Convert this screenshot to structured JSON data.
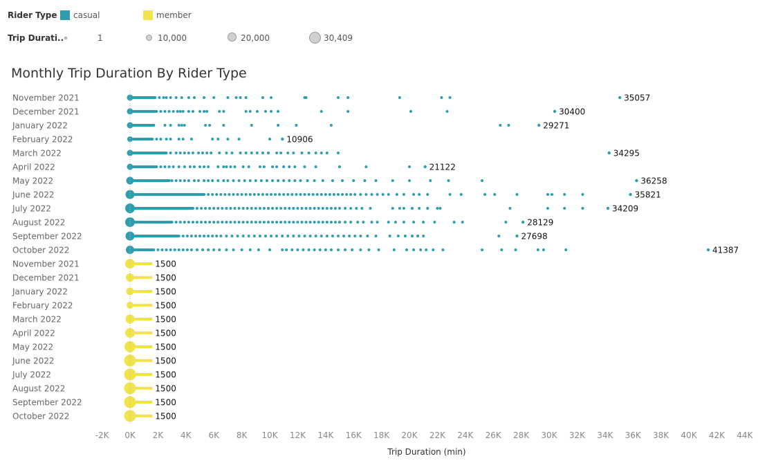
{
  "legend": {
    "color_title": "Rider Type",
    "items": [
      {
        "label": "casual",
        "color": "#2e9eae"
      },
      {
        "label": "member",
        "color": "#f1e34a"
      }
    ],
    "size_title": "Trip Durati..",
    "sizes": [
      {
        "label": "1",
        "value": 1
      },
      {
        "label": "10,000",
        "value": 10000
      },
      {
        "label": "20,000",
        "value": 20000
      },
      {
        "label": "30,409",
        "value": 30409
      }
    ]
  },
  "chart_data": {
    "type": "scatter",
    "title": "Monthly Trip Duration By Rider Type",
    "xlabel": "Trip Duration (min)",
    "xlim": [
      -2000,
      44000
    ],
    "xticks": [
      -2000,
      0,
      2000,
      4000,
      6000,
      8000,
      10000,
      12000,
      14000,
      16000,
      18000,
      20000,
      22000,
      24000,
      26000,
      28000,
      30000,
      32000,
      34000,
      36000,
      38000,
      40000,
      42000,
      44000
    ],
    "xtick_labels": [
      "-2K",
      "0K",
      "2K",
      "4K",
      "6K",
      "8K",
      "10K",
      "12K",
      "14K",
      "16K",
      "18K",
      "20K",
      "22K",
      "24K",
      "26K",
      "28K",
      "30K",
      "32K",
      "34K",
      "36K",
      "38K",
      "40K",
      "42K",
      "44K"
    ],
    "series": [
      {
        "name": "casual",
        "color": "#2e9eae",
        "rows": [
          {
            "label": "November 2021",
            "max": 35057,
            "dense_to": 1800,
            "points": [
              2100,
              2400,
              2600,
              2900,
              3300,
              3700,
              4200,
              4600,
              5300,
              6000,
              7000,
              7600,
              7900,
              8300,
              9500,
              10100,
              12500,
              12600,
              14900,
              15600,
              19300,
              22300,
              22900
            ]
          },
          {
            "label": "December 2021",
            "max": 30400,
            "dense_to": 1800,
            "points": [
              1900,
              2200,
              2500,
              2800,
              3100,
              3400,
              3600,
              3800,
              4200,
              4500,
              5000,
              5300,
              5500,
              6400,
              6700,
              8300,
              8600,
              9100,
              9700,
              10100,
              10600,
              13700,
              15600,
              20100,
              22700
            ]
          },
          {
            "label": "January 2022",
            "max": 29271,
            "dense_to": 1700,
            "points": [
              2500,
              2900,
              3500,
              3700,
              3900,
              5400,
              5700,
              6700,
              8700,
              10600,
              11900,
              14400,
              26500,
              27100
            ]
          },
          {
            "label": "February 2022",
            "max": 10906,
            "dense_to": 1600,
            "points": [
              1900,
              2200,
              2600,
              2900,
              3500,
              3800,
              4400,
              5900,
              6300,
              7000,
              7800,
              10000
            ]
          },
          {
            "label": "March 2022",
            "max": 34295,
            "dense_to": 2600,
            "points": [
              2900,
              3300,
              3600,
              3900,
              4200,
              4500,
              4900,
              5200,
              5500,
              5800,
              6400,
              6900,
              7300,
              7900,
              8300,
              8700,
              9100,
              9500,
              9900,
              10500,
              10800,
              11300,
              11700,
              12300,
              12800,
              13300,
              13700,
              14100,
              14900
            ]
          },
          {
            "label": "April 2022",
            "max": 21122,
            "dense_to": 1900,
            "points": [
              2200,
              2500,
              2800,
              3100,
              3500,
              3900,
              4300,
              4600,
              5000,
              5300,
              5600,
              6300,
              6700,
              6900,
              7200,
              7500,
              8100,
              8500,
              9300,
              9600,
              10200,
              10500,
              11000,
              11400,
              11800,
              12500,
              13300,
              15000,
              16900,
              20000
            ]
          },
          {
            "label": "May 2022",
            "max": 36258,
            "dense_to": 2800,
            "points": [
              3000,
              3300,
              3600,
              3900,
              4200,
              4600,
              4900,
              5300,
              5600,
              5900,
              6300,
              6700,
              7000,
              7400,
              7800,
              8200,
              8600,
              9000,
              9400,
              9800,
              10200,
              10600,
              11000,
              11400,
              11800,
              12200,
              12700,
              13200,
              13800,
              14500,
              15200,
              16000,
              16800,
              17600,
              18800,
              20000,
              21500,
              22800,
              25200
            ]
          },
          {
            "label": "June 2022",
            "max": 35821,
            "dense_to": 5300,
            "points": [
              5600,
              5900,
              6200,
              6500,
              6800,
              7100,
              7400,
              7700,
              8000,
              8300,
              8600,
              8900,
              9200,
              9500,
              9800,
              10100,
              10400,
              10700,
              11000,
              11300,
              11600,
              11900,
              12200,
              12500,
              12800,
              13100,
              13400,
              13700,
              14000,
              14300,
              14600,
              14900,
              15200,
              15500,
              15800,
              16100,
              16500,
              16900,
              17300,
              17700,
              18100,
              18500,
              19100,
              19600,
              20300,
              20700,
              21300,
              22900,
              23700,
              25400,
              26100,
              27700,
              29900,
              30200,
              31100,
              32400
            ]
          },
          {
            "label": "July 2022",
            "max": 34209,
            "dense_to": 4500,
            "points": [
              4800,
              5100,
              5400,
              5700,
              6000,
              6300,
              6600,
              6900,
              7200,
              7500,
              7800,
              8100,
              8400,
              8700,
              9000,
              9300,
              9600,
              9900,
              10200,
              10500,
              10800,
              11100,
              11400,
              11700,
              12000,
              12300,
              12600,
              12900,
              13200,
              13500,
              13800,
              14100,
              14400,
              14700,
              15000,
              15400,
              15800,
              16200,
              16600,
              17200,
              18800,
              19300,
              19600,
              20200,
              20700,
              21300,
              22000,
              22200,
              27200,
              29900,
              31100,
              32400
            ]
          },
          {
            "label": "August 2022",
            "max": 28129,
            "dense_to": 3000,
            "points": [
              3300,
              3600,
              3900,
              4200,
              4500,
              4800,
              5100,
              5400,
              5700,
              6000,
              6300,
              6600,
              6900,
              7200,
              7500,
              7800,
              8100,
              8400,
              8700,
              9000,
              9300,
              9600,
              9900,
              10200,
              10500,
              10800,
              11100,
              11400,
              11700,
              12000,
              12300,
              12600,
              12900,
              13200,
              13500,
              13800,
              14100,
              14400,
              14700,
              15000,
              15400,
              15800,
              16300,
              16700,
              17300,
              17700,
              18500,
              19000,
              19600,
              20300,
              21000,
              21800,
              23200,
              23800,
              26900
            ]
          },
          {
            "label": "September 2022",
            "max": 27698,
            "dense_to": 3500,
            "points": [
              3800,
              4100,
              4400,
              4700,
              5000,
              5300,
              5600,
              5900,
              6200,
              6500,
              6900,
              7300,
              7700,
              8100,
              8500,
              8900,
              9300,
              9700,
              10100,
              10500,
              10900,
              11300,
              11700,
              12100,
              12500,
              12900,
              13300,
              13700,
              14100,
              14500,
              14900,
              15300,
              15700,
              16100,
              16500,
              17000,
              17600,
              18600,
              19200,
              19700,
              20200,
              20600,
              21000,
              26400
            ]
          },
          {
            "label": "October 2022",
            "max": 41387,
            "dense_to": 1700,
            "points": [
              2000,
              2300,
              2600,
              2900,
              3200,
              3500,
              3800,
              4100,
              4400,
              4800,
              5200,
              5600,
              6000,
              6400,
              6900,
              7400,
              8000,
              8600,
              9200,
              10000,
              10900,
              11200,
              11600,
              12000,
              12400,
              12800,
              13200,
              13600,
              14000,
              14400,
              14900,
              15400,
              15900,
              16500,
              17100,
              17800,
              18900,
              19800,
              20300,
              20800,
              21200,
              21700,
              22400,
              25200,
              26600,
              27600,
              29200,
              29600,
              31200
            ]
          }
        ]
      },
      {
        "name": "member",
        "color": "#f1e34a",
        "rows": [
          {
            "label": "November 2021",
            "max": 1500,
            "dense_to": 1500,
            "points": []
          },
          {
            "label": "December 2021",
            "max": 1500,
            "dense_to": 1100,
            "points": [
              1200,
              1300,
              1500
            ]
          },
          {
            "label": "January 2022",
            "max": 1500,
            "dense_to": 1500,
            "points": []
          },
          {
            "label": "February 2022",
            "max": 1500,
            "dense_to": 1500,
            "points": []
          },
          {
            "label": "March 2022",
            "max": 1500,
            "dense_to": 1500,
            "points": []
          },
          {
            "label": "April 2022",
            "max": 1500,
            "dense_to": 1500,
            "points": []
          },
          {
            "label": "May 2022",
            "max": 1500,
            "dense_to": 1500,
            "points": []
          },
          {
            "label": "June 2022",
            "max": 1500,
            "dense_to": 1500,
            "points": []
          },
          {
            "label": "July 2022",
            "max": 1500,
            "dense_to": 1500,
            "points": []
          },
          {
            "label": "August 2022",
            "max": 1500,
            "dense_to": 1500,
            "points": []
          },
          {
            "label": "September 2022",
            "max": 1500,
            "dense_to": 1500,
            "points": []
          },
          {
            "label": "October 2022",
            "max": 1500,
            "dense_to": 1500,
            "points": []
          }
        ]
      }
    ],
    "legend_placement": "top-left",
    "grid": false
  }
}
